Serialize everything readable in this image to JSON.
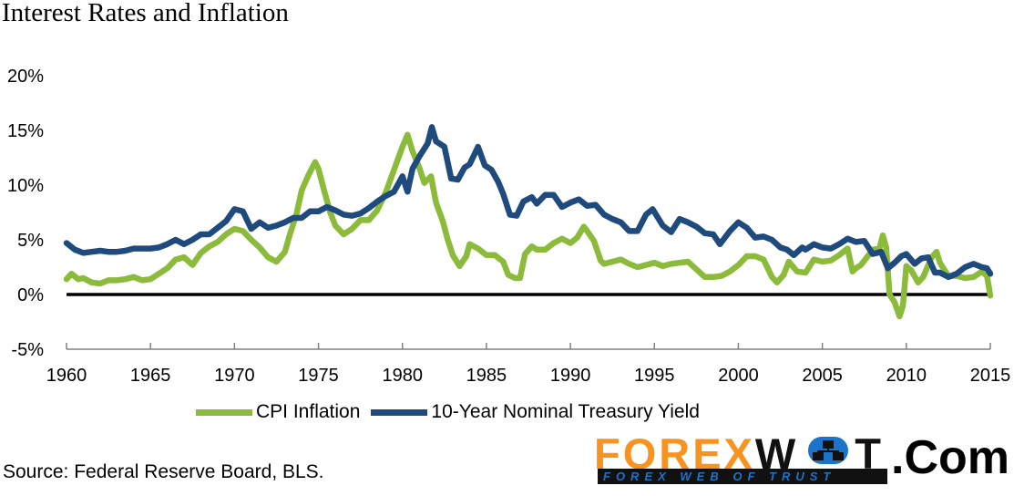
{
  "title": "Interest Rates and Inflation",
  "source": "Source: Federal Reserve Board, BLS.",
  "logo": {
    "brand_left": "FOREX",
    "brand_right": "W",
    "brand_right_end": "T",
    "subtitle": "FOREX WEB OF TRUST",
    "suffix": ".Com"
  },
  "colors": {
    "cpi": "#8cbb3c",
    "treasury": "#1f4a7e",
    "zero_line": "#000000",
    "logo_orange": "#f7931e",
    "logo_blue": "#1b74c9"
  },
  "chart_data": {
    "type": "line",
    "title": "Interest Rates and Inflation",
    "xlabel": "",
    "ylabel": "",
    "xlim": [
      1960,
      2015
    ],
    "ylim": [
      -5,
      20
    ],
    "x_ticks": [
      1960,
      1965,
      1970,
      1975,
      1980,
      1985,
      1990,
      1995,
      2000,
      2005,
      2010,
      2015
    ],
    "y_ticks": [
      -5,
      0,
      5,
      10,
      15,
      20
    ],
    "y_tick_labels": [
      "-5%",
      "0%",
      "5%",
      "10%",
      "15%",
      "20%"
    ],
    "x_tick_labels": [
      "1960",
      "1965",
      "1970",
      "1975",
      "1980",
      "1985",
      "1990",
      "1995",
      "2000",
      "2005",
      "2010",
      "2015"
    ],
    "grid": false,
    "legend": "bottom",
    "reference_line": 0,
    "series": [
      {
        "name": "CPI Inflation",
        "points": [
          [
            1960.0,
            1.4
          ],
          [
            1960.3,
            1.9
          ],
          [
            1960.7,
            1.4
          ],
          [
            1961.0,
            1.5
          ],
          [
            1961.5,
            1.1
          ],
          [
            1962.0,
            1.0
          ],
          [
            1962.5,
            1.3
          ],
          [
            1963.0,
            1.3
          ],
          [
            1963.5,
            1.4
          ],
          [
            1964.0,
            1.6
          ],
          [
            1964.5,
            1.3
          ],
          [
            1965.0,
            1.4
          ],
          [
            1965.5,
            1.9
          ],
          [
            1966.0,
            2.4
          ],
          [
            1966.5,
            3.2
          ],
          [
            1967.0,
            3.4
          ],
          [
            1967.5,
            2.7
          ],
          [
            1968.0,
            3.8
          ],
          [
            1968.5,
            4.4
          ],
          [
            1969.0,
            4.8
          ],
          [
            1969.5,
            5.5
          ],
          [
            1970.0,
            6.0
          ],
          [
            1970.5,
            5.8
          ],
          [
            1971.0,
            5.0
          ],
          [
            1971.5,
            4.3
          ],
          [
            1972.0,
            3.4
          ],
          [
            1972.5,
            3.0
          ],
          [
            1973.0,
            3.9
          ],
          [
            1973.3,
            5.5
          ],
          [
            1973.7,
            7.4
          ],
          [
            1974.0,
            9.5
          ],
          [
            1974.4,
            10.9
          ],
          [
            1974.8,
            12.1
          ],
          [
            1975.0,
            11.5
          ],
          [
            1975.3,
            9.7
          ],
          [
            1975.7,
            7.5
          ],
          [
            1976.0,
            6.3
          ],
          [
            1976.5,
            5.5
          ],
          [
            1977.0,
            6.0
          ],
          [
            1977.5,
            6.8
          ],
          [
            1978.0,
            6.8
          ],
          [
            1978.5,
            7.7
          ],
          [
            1979.0,
            9.3
          ],
          [
            1979.5,
            11.4
          ],
          [
            1980.0,
            13.5
          ],
          [
            1980.3,
            14.6
          ],
          [
            1980.6,
            13.1
          ],
          [
            1981.0,
            11.6
          ],
          [
            1981.3,
            10.2
          ],
          [
            1981.7,
            10.8
          ],
          [
            1982.0,
            8.4
          ],
          [
            1982.4,
            6.7
          ],
          [
            1982.7,
            5.0
          ],
          [
            1983.0,
            3.6
          ],
          [
            1983.4,
            2.6
          ],
          [
            1983.8,
            3.5
          ],
          [
            1984.0,
            4.6
          ],
          [
            1984.5,
            4.2
          ],
          [
            1985.0,
            3.6
          ],
          [
            1985.5,
            3.6
          ],
          [
            1986.0,
            3.0
          ],
          [
            1986.3,
            1.8
          ],
          [
            1986.7,
            1.5
          ],
          [
            1987.0,
            1.5
          ],
          [
            1987.3,
            3.7
          ],
          [
            1987.7,
            4.4
          ],
          [
            1988.0,
            4.1
          ],
          [
            1988.5,
            4.1
          ],
          [
            1989.0,
            4.7
          ],
          [
            1989.5,
            5.1
          ],
          [
            1990.0,
            4.7
          ],
          [
            1990.4,
            5.2
          ],
          [
            1990.8,
            6.2
          ],
          [
            1991.0,
            5.8
          ],
          [
            1991.4,
            4.9
          ],
          [
            1991.8,
            3.1
          ],
          [
            1992.0,
            2.8
          ],
          [
            1992.5,
            3.0
          ],
          [
            1993.0,
            3.2
          ],
          [
            1993.5,
            2.8
          ],
          [
            1994.0,
            2.5
          ],
          [
            1994.5,
            2.7
          ],
          [
            1995.0,
            2.9
          ],
          [
            1995.5,
            2.6
          ],
          [
            1996.0,
            2.8
          ],
          [
            1996.5,
            2.9
          ],
          [
            1997.0,
            3.0
          ],
          [
            1997.5,
            2.3
          ],
          [
            1998.0,
            1.6
          ],
          [
            1998.5,
            1.6
          ],
          [
            1999.0,
            1.7
          ],
          [
            1999.5,
            2.1
          ],
          [
            2000.0,
            2.7
          ],
          [
            2000.5,
            3.5
          ],
          [
            2001.0,
            3.5
          ],
          [
            2001.5,
            3.2
          ],
          [
            2002.0,
            1.6
          ],
          [
            2002.3,
            1.1
          ],
          [
            2002.7,
            1.8
          ],
          [
            2003.0,
            3.0
          ],
          [
            2003.5,
            2.1
          ],
          [
            2004.0,
            2.0
          ],
          [
            2004.5,
            3.2
          ],
          [
            2005.0,
            3.0
          ],
          [
            2005.5,
            3.1
          ],
          [
            2006.0,
            3.6
          ],
          [
            2006.5,
            4.2
          ],
          [
            2006.8,
            2.1
          ],
          [
            2007.0,
            2.4
          ],
          [
            2007.3,
            2.7
          ],
          [
            2007.7,
            3.5
          ],
          [
            2008.0,
            4.1
          ],
          [
            2008.4,
            4.2
          ],
          [
            2008.6,
            5.4
          ],
          [
            2008.8,
            4.3
          ],
          [
            2009.0,
            0.0
          ],
          [
            2009.3,
            -0.7
          ],
          [
            2009.6,
            -2.0
          ],
          [
            2009.8,
            -1.0
          ],
          [
            2010.0,
            2.6
          ],
          [
            2010.3,
            2.2
          ],
          [
            2010.7,
            1.1
          ],
          [
            2011.0,
            1.6
          ],
          [
            2011.5,
            3.4
          ],
          [
            2011.8,
            3.9
          ],
          [
            2012.0,
            2.9
          ],
          [
            2012.5,
            1.7
          ],
          [
            2013.0,
            1.7
          ],
          [
            2013.5,
            1.5
          ],
          [
            2014.0,
            1.6
          ],
          [
            2014.5,
            2.1
          ],
          [
            2014.8,
            1.7
          ],
          [
            2015.0,
            -0.1
          ]
        ]
      },
      {
        "name": "10-Year Nominal Treasury Yield",
        "points": [
          [
            1960.0,
            4.7
          ],
          [
            1960.5,
            4.1
          ],
          [
            1961.0,
            3.8
          ],
          [
            1961.5,
            3.9
          ],
          [
            1962.0,
            4.0
          ],
          [
            1962.5,
            3.9
          ],
          [
            1963.0,
            3.9
          ],
          [
            1963.5,
            4.0
          ],
          [
            1964.0,
            4.2
          ],
          [
            1964.5,
            4.2
          ],
          [
            1965.0,
            4.2
          ],
          [
            1965.5,
            4.3
          ],
          [
            1966.0,
            4.6
          ],
          [
            1966.5,
            5.0
          ],
          [
            1967.0,
            4.6
          ],
          [
            1967.5,
            5.0
          ],
          [
            1968.0,
            5.5
          ],
          [
            1968.5,
            5.5
          ],
          [
            1969.0,
            6.1
          ],
          [
            1969.5,
            6.7
          ],
          [
            1970.0,
            7.8
          ],
          [
            1970.5,
            7.6
          ],
          [
            1971.0,
            6.0
          ],
          [
            1971.5,
            6.6
          ],
          [
            1972.0,
            6.1
          ],
          [
            1972.5,
            6.3
          ],
          [
            1973.0,
            6.6
          ],
          [
            1973.5,
            7.0
          ],
          [
            1974.0,
            7.0
          ],
          [
            1974.5,
            7.6
          ],
          [
            1975.0,
            7.6
          ],
          [
            1975.5,
            8.0
          ],
          [
            1976.0,
            7.7
          ],
          [
            1976.5,
            7.3
          ],
          [
            1977.0,
            7.2
          ],
          [
            1977.5,
            7.4
          ],
          [
            1978.0,
            7.9
          ],
          [
            1978.5,
            8.5
          ],
          [
            1979.0,
            9.0
          ],
          [
            1979.5,
            9.4
          ],
          [
            1980.0,
            10.8
          ],
          [
            1980.3,
            9.4
          ],
          [
            1980.6,
            11.5
          ],
          [
            1981.0,
            12.6
          ],
          [
            1981.5,
            13.8
          ],
          [
            1981.75,
            15.3
          ],
          [
            1982.0,
            14.0
          ],
          [
            1982.5,
            13.5
          ],
          [
            1982.9,
            10.6
          ],
          [
            1983.3,
            10.5
          ],
          [
            1983.7,
            11.6
          ],
          [
            1984.0,
            11.9
          ],
          [
            1984.5,
            13.5
          ],
          [
            1984.9,
            11.8
          ],
          [
            1985.3,
            11.4
          ],
          [
            1985.7,
            10.3
          ],
          [
            1986.0,
            9.2
          ],
          [
            1986.4,
            7.3
          ],
          [
            1986.8,
            7.2
          ],
          [
            1987.2,
            8.5
          ],
          [
            1987.7,
            8.9
          ],
          [
            1988.0,
            8.3
          ],
          [
            1988.5,
            9.1
          ],
          [
            1989.0,
            9.1
          ],
          [
            1989.5,
            8.0
          ],
          [
            1990.0,
            8.4
          ],
          [
            1990.5,
            8.7
          ],
          [
            1991.0,
            8.1
          ],
          [
            1991.5,
            8.2
          ],
          [
            1992.0,
            7.3
          ],
          [
            1992.5,
            6.9
          ],
          [
            1993.0,
            6.6
          ],
          [
            1993.5,
            5.8
          ],
          [
            1994.0,
            5.8
          ],
          [
            1994.5,
            7.3
          ],
          [
            1994.9,
            7.8
          ],
          [
            1995.5,
            6.3
          ],
          [
            1996.0,
            5.7
          ],
          [
            1996.5,
            6.9
          ],
          [
            1997.0,
            6.6
          ],
          [
            1997.5,
            6.2
          ],
          [
            1998.0,
            5.6
          ],
          [
            1998.5,
            5.5
          ],
          [
            1998.9,
            4.6
          ],
          [
            1999.5,
            5.8
          ],
          [
            2000.0,
            6.6
          ],
          [
            2000.5,
            6.1
          ],
          [
            2001.0,
            5.2
          ],
          [
            2001.5,
            5.3
          ],
          [
            2002.0,
            5.0
          ],
          [
            2002.5,
            4.3
          ],
          [
            2002.9,
            4.1
          ],
          [
            2003.3,
            3.6
          ],
          [
            2003.8,
            4.3
          ],
          [
            2004.0,
            4.1
          ],
          [
            2004.5,
            4.6
          ],
          [
            2005.0,
            4.3
          ],
          [
            2005.5,
            4.2
          ],
          [
            2006.0,
            4.6
          ],
          [
            2006.5,
            5.1
          ],
          [
            2007.0,
            4.8
          ],
          [
            2007.5,
            4.9
          ],
          [
            2008.0,
            3.7
          ],
          [
            2008.5,
            3.9
          ],
          [
            2008.9,
            2.4
          ],
          [
            2009.3,
            2.9
          ],
          [
            2009.7,
            3.5
          ],
          [
            2010.0,
            3.7
          ],
          [
            2010.5,
            2.8
          ],
          [
            2010.9,
            3.3
          ],
          [
            2011.3,
            3.4
          ],
          [
            2011.7,
            2.0
          ],
          [
            2012.0,
            2.0
          ],
          [
            2012.5,
            1.6
          ],
          [
            2013.0,
            1.9
          ],
          [
            2013.5,
            2.5
          ],
          [
            2014.0,
            2.8
          ],
          [
            2014.5,
            2.5
          ],
          [
            2014.8,
            2.4
          ],
          [
            2015.0,
            1.9
          ]
        ]
      }
    ]
  }
}
